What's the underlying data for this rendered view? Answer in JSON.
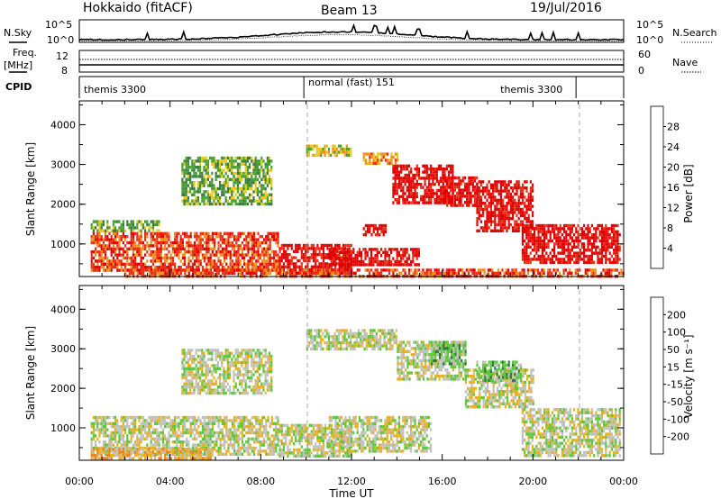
{
  "header": {
    "station": "Hokkaido (fitACF)",
    "beam": "Beam 13",
    "date": "19/Jul/2016"
  },
  "strip": {
    "nsky_label": "N.Sky",
    "nsky_ticks": [
      "10^5",
      "10^0"
    ],
    "nsearch_label": "N.Search",
    "nsearch_ticks": [
      "10^5",
      "10^0"
    ],
    "freq_label": "Freq.",
    "freq_unit": "[MHz]",
    "freq_ticks": [
      "12",
      "8"
    ],
    "nave_label": "Nave",
    "nave_ticks": [
      "60",
      "0"
    ],
    "cpid_label": "CPID",
    "cpid_segments": [
      {
        "start_hour": 0.0,
        "end_hour": 9.9,
        "label": "themis 3300"
      },
      {
        "start_hour": 9.9,
        "end_hour": 21.9,
        "label": "normal (fast) 151"
      },
      {
        "start_hour": 21.9,
        "end_hour": 24.0,
        "label": "themis 3300"
      }
    ]
  },
  "chart_data": [
    {
      "type": "heatmap",
      "name": "power",
      "ylabel": "Slant Range [km]",
      "xlabel": "",
      "xlim": [
        0,
        24
      ],
      "ylim": [
        180,
        4600
      ],
      "yticks": [
        "1000",
        "2000",
        "3000",
        "4000"
      ],
      "xticks": [
        "00:00",
        "04:00",
        "08:00",
        "12:00",
        "16:00",
        "20:00",
        "00:00"
      ],
      "colorbar": {
        "label": "Power [dB]",
        "ticks": [
          "4",
          "8",
          "12",
          "16",
          "20",
          "24",
          "28"
        ],
        "colors": [
          "#1020e0",
          "#3050b0",
          "#3a7a40",
          "#48a030",
          "#e8c81a",
          "#f09018",
          "#e83018",
          "#e00000"
        ]
      },
      "regions": [
        {
          "x": [
            0.5,
            8.8
          ],
          "y": [
            350,
            1300
          ],
          "level": 6
        },
        {
          "x": [
            0.5,
            3.5
          ],
          "y": [
            1300,
            1600
          ],
          "level": 3
        },
        {
          "x": [
            8.8,
            12.0
          ],
          "y": [
            250,
            1000
          ],
          "level": 7
        },
        {
          "x": [
            11.0,
            15.0
          ],
          "y": [
            500,
            900
          ],
          "level": 7
        },
        {
          "x": [
            12.5,
            13.5
          ],
          "y": [
            1200,
            1500
          ],
          "level": 7
        },
        {
          "x": [
            13.8,
            16.5
          ],
          "y": [
            2000,
            3000
          ],
          "level": 7
        },
        {
          "x": [
            16.0,
            17.5
          ],
          "y": [
            2000,
            2700
          ],
          "level": 7
        },
        {
          "x": [
            17.5,
            20.0
          ],
          "y": [
            1300,
            2600
          ],
          "level": 7
        },
        {
          "x": [
            19.5,
            23.8
          ],
          "y": [
            500,
            1500
          ],
          "level": 7
        },
        {
          "x": [
            4.5,
            8.5
          ],
          "y": [
            2000,
            3200
          ],
          "level": 3
        },
        {
          "x": [
            10.0,
            12.0
          ],
          "y": [
            3200,
            3500
          ],
          "level": 4
        },
        {
          "x": [
            12.5,
            14.0
          ],
          "y": [
            3000,
            3300
          ],
          "level": 5
        },
        {
          "x": [
            2.0,
            24.0
          ],
          "y": [
            200,
            380
          ],
          "level": 6
        }
      ]
    },
    {
      "type": "heatmap",
      "name": "velocity",
      "ylabel": "Slant Range [km]",
      "xlabel": "Time UT",
      "xlim": [
        0,
        24
      ],
      "ylim": [
        180,
        4600
      ],
      "yticks": [
        "1000",
        "2000",
        "3000",
        "4000"
      ],
      "xticks": [
        "00:00",
        "04:00",
        "08:00",
        "12:00",
        "16:00",
        "20:00",
        "00:00"
      ],
      "colorbar": {
        "label": "Velocity [m s⁻¹]",
        "ticks": [
          "200",
          "100",
          "50",
          "15",
          "-15",
          "-50",
          "-100",
          "-200"
        ],
        "colors": [
          "#2020c0",
          "#3060c0",
          "#2e7a40",
          "#5cc838",
          "#c0c0bc",
          "#e8b020",
          "#f08018",
          "#e82010",
          "#d00000"
        ]
      },
      "regions": [
        {
          "x": [
            0.5,
            8.8
          ],
          "y": [
            350,
            1300
          ],
          "level": 4
        },
        {
          "x": [
            0.5,
            6.0
          ],
          "y": [
            250,
            500
          ],
          "level": 5
        },
        {
          "x": [
            8.8,
            12.0
          ],
          "y": [
            250,
            1100
          ],
          "level": 4
        },
        {
          "x": [
            11.0,
            15.5
          ],
          "y": [
            400,
            1300
          ],
          "level": 4
        },
        {
          "x": [
            14.0,
            17.0
          ],
          "y": [
            2200,
            3200
          ],
          "level": 4
        },
        {
          "x": [
            15.5,
            17.0
          ],
          "y": [
            2600,
            3200
          ],
          "level": 3
        },
        {
          "x": [
            17.0,
            20.0
          ],
          "y": [
            1500,
            2500
          ],
          "level": 4
        },
        {
          "x": [
            17.5,
            19.5
          ],
          "y": [
            2200,
            2700
          ],
          "level": 3
        },
        {
          "x": [
            19.5,
            23.8
          ],
          "y": [
            300,
            1500
          ],
          "level": 4
        },
        {
          "x": [
            4.5,
            8.5
          ],
          "y": [
            1900,
            3000
          ],
          "level": 4
        },
        {
          "x": [
            10.0,
            14.0
          ],
          "y": [
            3000,
            3500
          ],
          "level": 4
        }
      ]
    }
  ]
}
